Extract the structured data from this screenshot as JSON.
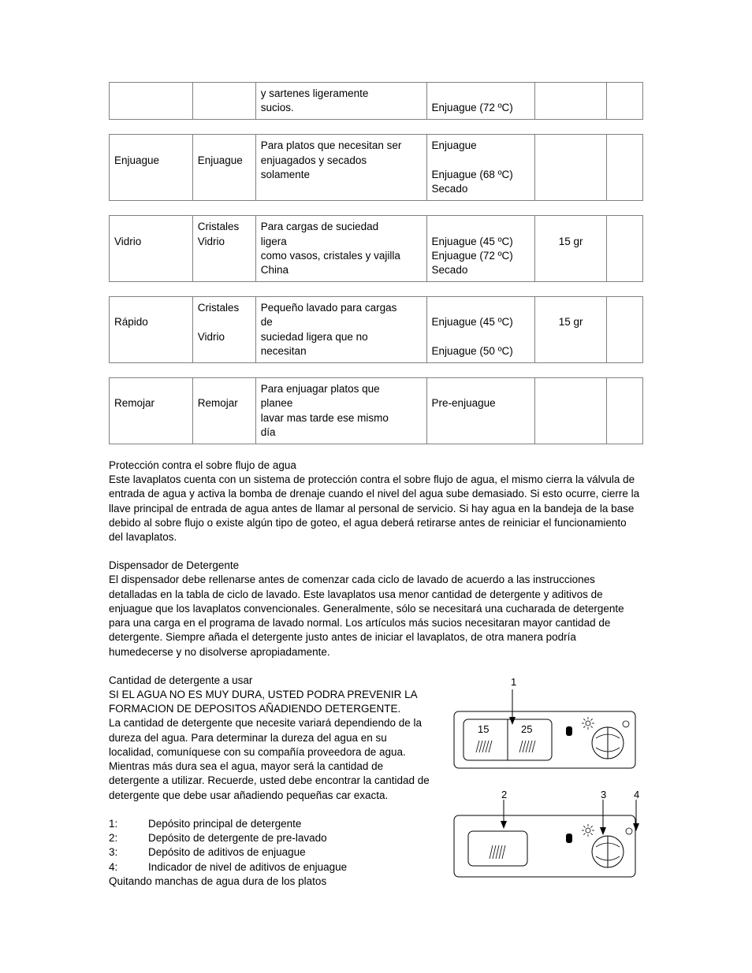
{
  "tables": [
    {
      "rows": [
        {
          "name": "",
          "type": "",
          "desc_lines": [
            "y sartenes ligeramente",
            "sucios."
          ],
          "steps_lines": [
            "",
            "Enjuague (72 ºC)"
          ],
          "amount": ""
        }
      ]
    },
    {
      "rows": [
        {
          "name": "Enjuague",
          "type": "Enjuague",
          "desc_lines": [
            "Para platos que necesitan ser",
            "enjuagados y secados",
            "solamente"
          ],
          "steps_lines": [
            "Enjuague",
            "",
            "Enjuague (68 ºC)",
            "Secado"
          ],
          "amount": ""
        }
      ]
    },
    {
      "rows": [
        {
          "name": "Vidrio",
          "type_lines": [
            "Cristales",
            "Vidrio"
          ],
          "desc_lines": [
            "Para cargas de suciedad",
            "ligera",
            "como vasos, cristales y vajilla",
            "China"
          ],
          "steps_lines": [
            "",
            "Enjuague (45 ºC)",
            "Enjuague (72 ºC)",
            "Secado"
          ],
          "amount": "15 gr"
        }
      ]
    },
    {
      "rows": [
        {
          "name": "Rápido",
          "type_lines": [
            "Cristales",
            "",
            "Vidrio"
          ],
          "desc_lines": [
            "Pequeño lavado para cargas",
            "de",
            "suciedad ligera que no",
            "necesitan"
          ],
          "steps_lines": [
            "",
            "Enjuague (45 ºC)",
            "",
            "Enjuague (50 ºC)"
          ],
          "amount": "15 gr"
        }
      ]
    },
    {
      "rows": [
        {
          "name": "Remojar",
          "type": "Remojar",
          "desc_lines": [
            "Para enjuagar platos que",
            "planee",
            "lavar mas tarde ese mismo",
            "día"
          ],
          "steps_lines": [
            "",
            "Pre-enjuague"
          ],
          "amount": ""
        }
      ]
    }
  ],
  "section1_heading": "Protección contra el sobre flujo de agua",
  "section1_body": "Este lavaplatos cuenta con un sistema de protección contra el sobre flujo de agua, el mismo cierra la válvula de entrada de agua y activa la bomba de drenaje cuando el nivel del agua sube demasiado. Si esto ocurre, cierre la llave principal de entrada de agua antes de llamar al personal de servicio. Si hay agua en la bandeja de la base debido al sobre flujo o existe algún tipo de goteo, el agua deberá retirarse antes de reiniciar el funcionamiento del lavaplatos.",
  "section2_heading": "Dispensador de Detergente",
  "section2_body": "El dispensador debe rellenarse antes de comenzar cada ciclo de lavado de acuerdo a las instrucciones detalladas en la tabla de ciclo de lavado. Este lavaplatos usa menor cantidad de detergente y aditivos de enjuague que los lavaplatos convencionales. Generalmente, sólo se necesitará una cucharada de detergente para una carga en el programa de lavado normal. Los artículos más sucios necesitaran mayor cantidad de detergente. Siempre añada el detergente justo antes de iniciar el lavaplatos, de otra manera podría humedecerse y no disolverse apropiadamente.",
  "section3_heading": "Cantidad de detergente a usar",
  "section3_caps": "SI EL AGUA NO ES MUY DURA, USTED PODRA PREVENIR LA FORMACION DE DEPOSITOS AÑADIENDO DETERGENTE.",
  "section3_body": "La cantidad de detergente que necesite variará dependiendo de la dureza del agua. Para determinar la dureza del agua en su localidad, comuníquese con su compañía proveedora de agua. Mientras más dura sea el agua, mayor será la cantidad de detergente a utilizar. Recuerde, usted debe encontrar la cantidad de detergente que debe usar añadiendo pequeñas car exacta.",
  "legend": [
    {
      "n": "1:",
      "t": "Depósito principal de detergente"
    },
    {
      "n": "2:",
      "t": "Depósito de detergente de pre-lavado"
    },
    {
      "n": "3:",
      "t": "Depósito de aditivos de enjuague"
    },
    {
      "n": "4:",
      "t": "Indicador de nivel de aditivos de enjuague"
    }
  ],
  "footer_line": "Quitando manchas de agua dura de los platos",
  "diagram": {
    "labels": {
      "l1": "1",
      "l2": "2",
      "l3": "3",
      "l4": "4",
      "n15": "15",
      "n25": "25"
    },
    "stroke": "#000000",
    "fontsize": 13
  }
}
